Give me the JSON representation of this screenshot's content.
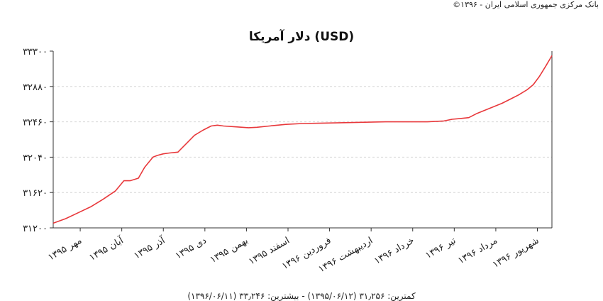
{
  "copyright": "بانک مرکزی جمهوری اسلامی ایران - ۱۳۹۶©",
  "footer": "کمترین: ۳۱٫۲۵۶ (۱۳۹۵/۰۶/۱۲) - بیشترین: ۳۳٫۲۴۶ (۱۳۹۶/۰۶/۱۱)",
  "chart_data": {
    "type": "line",
    "title": "دلار آمریکا (USD)",
    "xlabel": "",
    "ylabel": "",
    "ylim": [
      31200,
      33300
    ],
    "yticks": [
      31200,
      31620,
      32040,
      32460,
      32880,
      33300
    ],
    "ytick_labels": [
      "۳۱۲۰۰",
      "۳۱۶۲۰",
      "۳۲۰۴۰",
      "۳۲۴۶۰",
      "۳۲۸۸۰",
      "۳۳۳۰۰"
    ],
    "xlim": [
      0,
      12
    ],
    "xticks": [
      {
        "pos": 0.65,
        "label": "مهر ۱۳۹۵"
      },
      {
        "pos": 1.65,
        "label": "آبان ۱۳۹۵"
      },
      {
        "pos": 2.65,
        "label": "آذر ۱۳۹۵"
      },
      {
        "pos": 3.65,
        "label": "دی ۱۳۹۵"
      },
      {
        "pos": 4.65,
        "label": "بهمن ۱۳۹۵"
      },
      {
        "pos": 5.65,
        "label": "اسفند ۱۳۹۵"
      },
      {
        "pos": 6.65,
        "label": "فروردین ۱۳۹۶"
      },
      {
        "pos": 7.65,
        "label": "اردیبهشت ۱۳۹۶"
      },
      {
        "pos": 8.65,
        "label": "خرداد ۱۳۹۶"
      },
      {
        "pos": 9.65,
        "label": "تیر ۱۳۹۶"
      },
      {
        "pos": 10.65,
        "label": "مرداد ۱۳۹۶"
      },
      {
        "pos": 11.65,
        "label": "شهریور ۱۳۹۶"
      }
    ],
    "grid": true,
    "line_color": "#e8383b",
    "series": [
      {
        "x": [
          0,
          0.3,
          0.6,
          0.9,
          1.2,
          1.5,
          1.7,
          1.85,
          2.05,
          2.2,
          2.4,
          2.5,
          2.65,
          2.8,
          3.0,
          3.2,
          3.4,
          3.6,
          3.8,
          3.95,
          4.1,
          4.4,
          4.7,
          4.9,
          5.2,
          5.6,
          6.0,
          6.5,
          7.0,
          7.5,
          8.0,
          8.5,
          9.0,
          9.4,
          9.6,
          9.8,
          10.0,
          10.2,
          10.5,
          10.8,
          11.0,
          11.2,
          11.4,
          11.55,
          11.7,
          11.85,
          12.0
        ],
        "y": [
          31256,
          31310,
          31380,
          31450,
          31540,
          31640,
          31760,
          31760,
          31790,
          31920,
          32040,
          32060,
          32080,
          32090,
          32100,
          32200,
          32300,
          32360,
          32410,
          32420,
          32410,
          32400,
          32390,
          32395,
          32410,
          32430,
          32440,
          32445,
          32450,
          32455,
          32460,
          32460,
          32460,
          32470,
          32490,
          32500,
          32510,
          32560,
          32620,
          32680,
          32730,
          32780,
          32840,
          32900,
          33000,
          33120,
          33246
        ]
      }
    ]
  }
}
